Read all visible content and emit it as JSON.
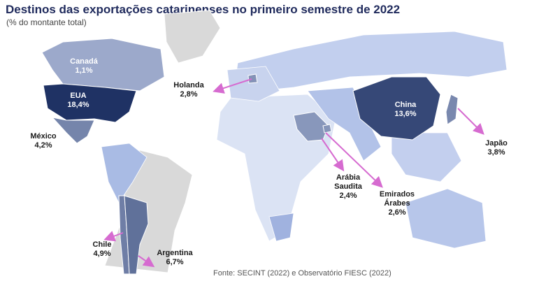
{
  "title": "Destinos das exportações catarinenses no primeiro semestre de 2022",
  "subtitle": "(% do montante total)",
  "source": "Fonte: SECINT (2022) e Observatório FIESC (2022)",
  "regions": [
    {
      "name": "Canadá",
      "value": 1.1,
      "value_label": "1,1%"
    },
    {
      "name": "EUA",
      "value": 18.4,
      "value_label": "18,4%"
    },
    {
      "name": "México",
      "value": 4.2,
      "value_label": "4,2%"
    },
    {
      "name": "Holanda",
      "value": 2.8,
      "value_label": "2,8%"
    },
    {
      "name": "China",
      "value": 13.6,
      "value_label": "13,6%"
    },
    {
      "name": "Japão",
      "value": 3.8,
      "value_label": "3,8%"
    },
    {
      "name": "Arábia Saudita",
      "value": 2.4,
      "value_label": "2,4%"
    },
    {
      "name": "Emirados Árabes",
      "value": 2.6,
      "value_label": "2,6%"
    },
    {
      "name": "Chile",
      "value": 4.9,
      "value_label": "4,9%"
    },
    {
      "name": "Argentina",
      "value": 6.7,
      "value_label": "6,7%"
    }
  ]
}
